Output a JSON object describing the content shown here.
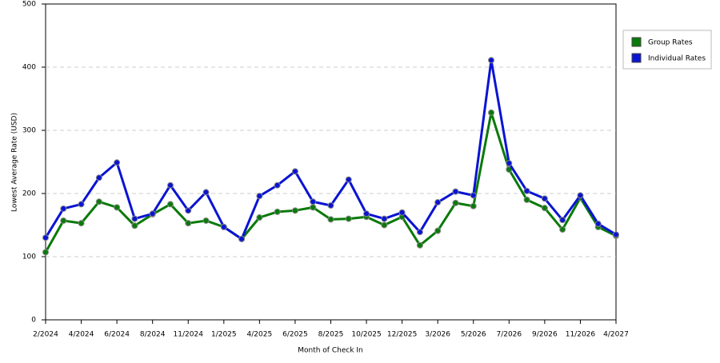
{
  "chart_data": {
    "type": "line",
    "x_label": "Month of Check In",
    "y_label": "Lowest Average Rate (USD)",
    "categories": [
      "2/2024",
      null,
      "4/2024",
      null,
      "6/2024",
      null,
      "8/2024",
      null,
      "11/2024",
      null,
      "1/2025",
      null,
      "4/2025",
      null,
      "6/2025",
      null,
      "8/2025",
      null,
      "10/2025",
      null,
      "12/2025",
      null,
      "3/2026",
      null,
      "5/2026",
      null,
      "7/2026",
      null,
      "9/2026",
      null,
      "11/2026",
      null,
      "4/2027"
    ],
    "series": [
      {
        "name": "Group Rates",
        "color": "#0a7a0a",
        "values": [
          107,
          157,
          153,
          187,
          178,
          149,
          167,
          183,
          153,
          157,
          147,
          128,
          162,
          171,
          173,
          178,
          159,
          160,
          163,
          150,
          163,
          118,
          141,
          185,
          180,
          328,
          238,
          190,
          177,
          143,
          193,
          147,
          133
        ]
      },
      {
        "name": "Individual Rates",
        "color": "#0a14d2",
        "values": [
          130,
          176,
          183,
          225,
          249,
          160,
          168,
          213,
          173,
          202,
          147,
          128,
          196,
          213,
          235,
          187,
          181,
          222,
          168,
          160,
          170,
          139,
          186,
          203,
          197,
          411,
          248,
          204,
          192,
          158,
          197,
          152,
          135
        ]
      }
    ],
    "ylim": [
      0,
      500
    ],
    "yticks": [
      0,
      100,
      200,
      300,
      400,
      500
    ],
    "grid": true,
    "legend": "right"
  }
}
